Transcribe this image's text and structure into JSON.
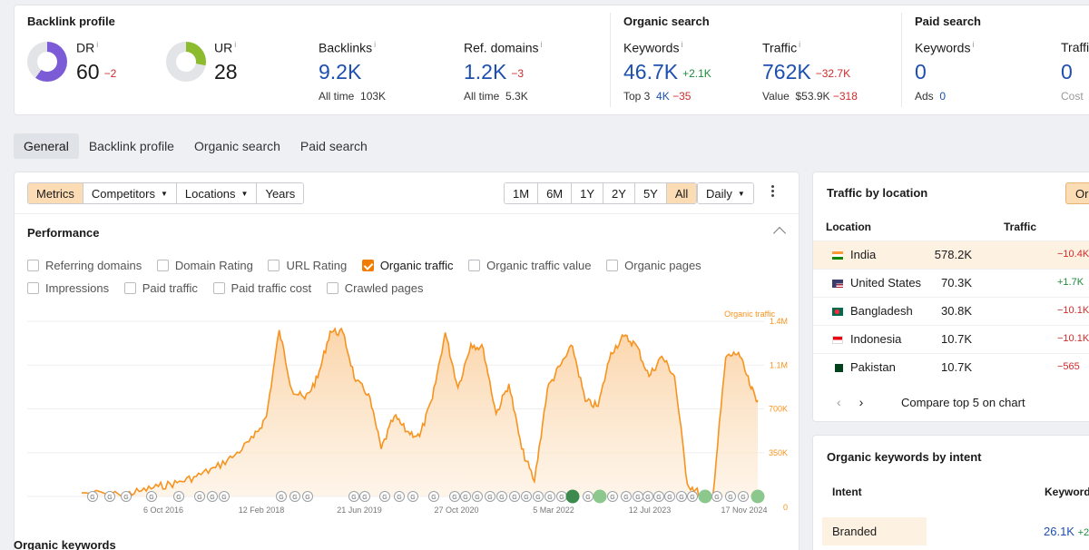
{
  "overview": {
    "backlink_profile": {
      "title": "Backlink profile",
      "dr": {
        "label": "DR",
        "value": "60",
        "delta": "−2",
        "donut_color": "#7b5bd6"
      },
      "ur": {
        "label": "UR",
        "value": "28",
        "donut_color": "#8dbb2e"
      },
      "backlinks": {
        "label": "Backlinks",
        "value": "9.2K",
        "sub_label": "All time",
        "sub_value": "103K"
      },
      "ref_domains": {
        "label": "Ref. domains",
        "value": "1.2K",
        "delta": "−3",
        "sub_label": "All time",
        "sub_value": "5.3K"
      }
    },
    "organic_search": {
      "title": "Organic search",
      "keywords": {
        "label": "Keywords",
        "value": "46.7K",
        "delta": "+2.1K",
        "sub_label": "Top 3",
        "sub_value": "4K",
        "sub_delta": "−35"
      },
      "traffic": {
        "label": "Traffic",
        "value": "762K",
        "delta": "−32.7K",
        "sub_label": "Value",
        "sub_value": "$53.9K",
        "sub_delta": "−318"
      }
    },
    "paid_search": {
      "title": "Paid search",
      "keywords": {
        "label": "Keywords",
        "value": "0",
        "sub_label": "Ads",
        "sub_value": "0"
      },
      "traffic": {
        "label": "Traffic",
        "value": "0",
        "sub_label": "Cost"
      }
    }
  },
  "tabs": [
    {
      "label": "General",
      "active": true
    },
    {
      "label": "Backlink profile"
    },
    {
      "label": "Organic search"
    },
    {
      "label": "Paid search"
    }
  ],
  "toolbar": {
    "view_buttons": [
      "Metrics",
      "Competitors",
      "Locations",
      "Years"
    ],
    "range_buttons": [
      "1M",
      "6M",
      "1Y",
      "2Y",
      "5Y",
      "All"
    ],
    "interval": "Daily"
  },
  "performance": {
    "title": "Performance",
    "checkboxes": [
      {
        "label": "Referring domains",
        "checked": false
      },
      {
        "label": "Domain Rating",
        "checked": false
      },
      {
        "label": "URL Rating",
        "checked": false
      },
      {
        "label": "Organic traffic",
        "checked": true
      },
      {
        "label": "Organic traffic value",
        "checked": false
      },
      {
        "label": "Organic pages",
        "checked": false
      },
      {
        "label": "Impressions",
        "checked": false
      },
      {
        "label": "Paid traffic",
        "checked": false
      },
      {
        "label": "Paid traffic cost",
        "checked": false
      },
      {
        "label": "Crawled pages",
        "checked": false
      }
    ]
  },
  "chart_data": {
    "type": "area",
    "series": [
      {
        "name": "Organic traffic",
        "color": "#f7931e"
      }
    ],
    "x_tick_labels": [
      "6 Oct 2016",
      "12 Feb 2018",
      "21 Jun 2019",
      "27 Oct 2020",
      "5 Mar 2022",
      "12 Jul 2023",
      "17 Nov 2024"
    ],
    "y_tick_labels": [
      "0",
      "350K",
      "700K",
      "1.1M",
      "1.4M"
    ],
    "y_ticks": [
      0,
      350000,
      700000,
      1050000,
      1400000
    ],
    "ylim": [
      0,
      1400000
    ],
    "x": [
      "2016-01",
      "2016-07",
      "2016-10",
      "2017-01",
      "2017-04",
      "2017-07",
      "2017-10",
      "2018-01",
      "2018-04",
      "2018-06",
      "2018-08",
      "2018-10",
      "2018-12",
      "2019-02",
      "2019-04",
      "2019-06",
      "2019-08",
      "2019-10",
      "2019-12",
      "2020-02",
      "2020-04",
      "2020-06",
      "2020-08",
      "2020-10",
      "2020-12",
      "2021-02",
      "2021-04",
      "2021-06",
      "2021-08",
      "2021-10",
      "2021-12",
      "2022-02",
      "2022-04",
      "2022-06",
      "2022-08",
      "2022-10",
      "2022-12",
      "2023-02",
      "2023-04",
      "2023-06",
      "2023-08",
      "2023-10",
      "2023-12",
      "2024-02",
      "2024-04",
      "2024-06",
      "2024-08",
      "2024-10",
      "2024-11"
    ],
    "values": [
      30000,
      10000,
      40000,
      80000,
      110000,
      160000,
      230000,
      330000,
      470000,
      640000,
      1330000,
      850000,
      780000,
      950000,
      1320000,
      1310000,
      920000,
      820000,
      380000,
      640000,
      520000,
      480000,
      780000,
      1310000,
      870000,
      1220000,
      1180000,
      660000,
      900000,
      380000,
      120000,
      860000,
      1040000,
      1200000,
      760000,
      720000,
      1150000,
      1280000,
      1210000,
      960000,
      1120000,
      960000,
      100000,
      20000,
      10000,
      1110000,
      1150000,
      860000,
      770000
    ],
    "series_label": "Organic traffic"
  },
  "traffic_by_location": {
    "title": "Traffic by location",
    "button": "Org",
    "col_location": "Location",
    "col_traffic": "Traffic",
    "rows": [
      {
        "country": "India",
        "traffic": "578.2K",
        "delta": "−10.4K",
        "dir": "neg",
        "flag": "india-flag-icon"
      },
      {
        "country": "United States",
        "traffic": "70.3K",
        "delta": "+1.7K",
        "dir": "pos",
        "flag": "us-flag-icon"
      },
      {
        "country": "Bangladesh",
        "traffic": "30.8K",
        "delta": "−10.1K",
        "dir": "neg",
        "flag": "bangladesh-flag-icon"
      },
      {
        "country": "Indonesia",
        "traffic": "10.7K",
        "delta": "−10.1K",
        "dir": "neg",
        "flag": "indonesia-flag-icon"
      },
      {
        "country": "Pakistan",
        "traffic": "10.7K",
        "delta": "−565",
        "dir": "neg",
        "flag": "pakistan-flag-icon"
      }
    ],
    "compare_label": "Compare top 5 on chart"
  },
  "keywords_by_intent": {
    "title": "Organic keywords by intent",
    "col_intent": "Intent",
    "col_keywords": "Keyword",
    "rows": [
      {
        "intent": "Branded",
        "keywords": "26.1K",
        "delta": "+2"
      }
    ]
  },
  "organic_keywords": {
    "title": "Organic keywords"
  }
}
